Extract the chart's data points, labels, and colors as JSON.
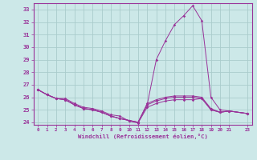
{
  "xlabel": "Windchill (Refroidissement éolien,°C)",
  "xlim": [
    -0.5,
    23.5
  ],
  "ylim": [
    23.8,
    33.5
  ],
  "yticks": [
    24,
    25,
    26,
    27,
    28,
    29,
    30,
    31,
    32,
    33
  ],
  "xticks": [
    0,
    1,
    2,
    3,
    4,
    5,
    6,
    7,
    8,
    9,
    10,
    11,
    12,
    13,
    14,
    15,
    16,
    17,
    18,
    19,
    20,
    21,
    23
  ],
  "bg_color": "#cce8e8",
  "grid_color": "#aacccc",
  "line_color": "#993399",
  "lines": [
    {
      "x": [
        0,
        1,
        2,
        3,
        4,
        5,
        6,
        7,
        8,
        9,
        10,
        11,
        12,
        13,
        14,
        15,
        16,
        17,
        18,
        19,
        20,
        21,
        23
      ],
      "y": [
        26.6,
        26.2,
        25.9,
        25.9,
        25.5,
        25.2,
        25.1,
        24.9,
        24.6,
        24.5,
        24.1,
        23.95,
        25.2,
        25.5,
        25.7,
        25.8,
        25.8,
        25.8,
        25.9,
        25.0,
        24.8,
        24.9,
        24.7
      ]
    },
    {
      "x": [
        0,
        1,
        2,
        3,
        4,
        5,
        6,
        7,
        8,
        9,
        10,
        11,
        12,
        13,
        14,
        15,
        16,
        17,
        18,
        19,
        20,
        21,
        23
      ],
      "y": [
        26.6,
        26.2,
        25.9,
        25.8,
        25.4,
        25.1,
        25.0,
        24.8,
        24.5,
        24.3,
        24.15,
        24.0,
        25.5,
        25.8,
        26.0,
        26.1,
        26.1,
        26.1,
        26.0,
        25.1,
        24.8,
        24.9,
        24.7
      ]
    },
    {
      "x": [
        0,
        1,
        2,
        3,
        4,
        5,
        6,
        7,
        8,
        9,
        10,
        11,
        12,
        13,
        14,
        15,
        16,
        17,
        18,
        19,
        20,
        21,
        23
      ],
      "y": [
        26.6,
        26.2,
        25.9,
        25.8,
        25.4,
        25.1,
        25.0,
        24.8,
        24.5,
        24.3,
        24.15,
        24.0,
        25.4,
        29.0,
        30.5,
        31.8,
        32.5,
        33.3,
        32.1,
        26.0,
        25.0,
        24.9,
        24.7
      ]
    },
    {
      "x": [
        0,
        1,
        2,
        3,
        4,
        5,
        6,
        7,
        8,
        9,
        10,
        11,
        12,
        13,
        14,
        15,
        16,
        17,
        18,
        19,
        20,
        21,
        23
      ],
      "y": [
        26.6,
        26.2,
        25.9,
        25.8,
        25.4,
        25.1,
        25.0,
        24.8,
        24.5,
        24.3,
        24.15,
        24.0,
        25.4,
        25.7,
        25.9,
        26.0,
        26.0,
        26.0,
        25.9,
        25.0,
        24.8,
        24.9,
        24.7
      ]
    }
  ]
}
